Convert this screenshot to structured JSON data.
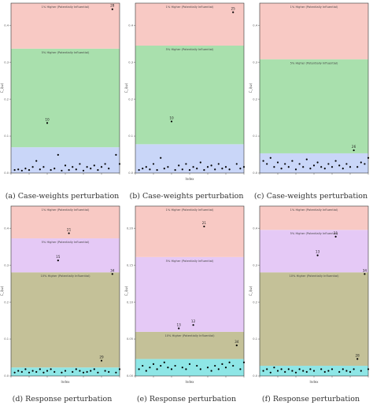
{
  "colors": {
    "red": "#f8c9c4",
    "green": "#a9e0ad",
    "blue": "#c9d6f8",
    "lavender": "#e5c9f6",
    "olive": "#c4c198",
    "cyan": "#8ee6e6",
    "point": "#000000",
    "frame": "#333333"
  },
  "chart_data": [
    {
      "type": "scatter",
      "caption": "(a) Case-weights perturbation",
      "ylabel": "C_i(ω)",
      "xlabel": "",
      "xlim": [
        0,
        30
      ],
      "ylim": [
        0,
        0.56
      ],
      "yticks": [
        "0.0",
        "0.1",
        "0.2",
        "0.3",
        "0.4"
      ],
      "bands": [
        {
          "from": 0.0,
          "to": 0.085,
          "color": "blue",
          "label": ""
        },
        {
          "from": 0.085,
          "to": 0.41,
          "color": "green",
          "label": "5% Higher (Potentially Influential)"
        },
        {
          "from": 0.41,
          "to": 0.56,
          "color": "red",
          "label": "1% Higher (Potentially Influential)"
        }
      ],
      "points": [
        [
          1,
          0.01
        ],
        [
          2,
          0.012
        ],
        [
          3,
          0.008
        ],
        [
          4,
          0.015
        ],
        [
          5,
          0.01
        ],
        [
          6,
          0.02
        ],
        [
          7,
          0.04
        ],
        [
          8,
          0.012
        ],
        [
          9,
          0.02
        ],
        [
          10,
          0.165
        ],
        [
          11,
          0.01
        ],
        [
          12,
          0.015
        ],
        [
          13,
          0.06
        ],
        [
          14,
          0.008
        ],
        [
          15,
          0.025
        ],
        [
          16,
          0.01
        ],
        [
          17,
          0.02
        ],
        [
          18,
          0.012
        ],
        [
          19,
          0.03
        ],
        [
          20,
          0.008
        ],
        [
          21,
          0.02
        ],
        [
          22,
          0.015
        ],
        [
          23,
          0.025
        ],
        [
          24,
          0.01
        ],
        [
          25,
          0.02
        ],
        [
          26,
          0.03
        ],
        [
          27,
          0.015
        ],
        [
          28,
          0.54
        ],
        [
          29,
          0.06
        ],
        [
          30,
          0.03
        ]
      ],
      "labels": [
        {
          "x": 28,
          "y": 0.54,
          "text": "28"
        },
        {
          "x": 10,
          "y": 0.165,
          "text": "10"
        }
      ]
    },
    {
      "type": "scatter",
      "caption": "(b) Case-weights perturbation",
      "ylabel": "C_i(ω)",
      "xlabel": "Index",
      "xlim": [
        0,
        30
      ],
      "ylim": [
        0,
        0.56
      ],
      "yticks": [
        "0.0",
        "0.1",
        "0.2",
        "0.3",
        "0.4"
      ],
      "bands": [
        {
          "from": 0.0,
          "to": 0.095,
          "color": "blue",
          "label": ""
        },
        {
          "from": 0.095,
          "to": 0.42,
          "color": "green",
          "label": "5% Higher (Potentially Influential)"
        },
        {
          "from": 0.42,
          "to": 0.56,
          "color": "red",
          "label": "1% Higher (Potentially Influential)"
        }
      ],
      "points": [
        [
          1,
          0.01
        ],
        [
          2,
          0.015
        ],
        [
          3,
          0.02
        ],
        [
          4,
          0.012
        ],
        [
          5,
          0.03
        ],
        [
          6,
          0.01
        ],
        [
          7,
          0.05
        ],
        [
          8,
          0.015
        ],
        [
          9,
          0.02
        ],
        [
          10,
          0.17
        ],
        [
          11,
          0.01
        ],
        [
          12,
          0.025
        ],
        [
          13,
          0.012
        ],
        [
          14,
          0.03
        ],
        [
          15,
          0.01
        ],
        [
          16,
          0.02
        ],
        [
          17,
          0.015
        ],
        [
          18,
          0.035
        ],
        [
          19,
          0.01
        ],
        [
          20,
          0.02
        ],
        [
          21,
          0.025
        ],
        [
          22,
          0.012
        ],
        [
          23,
          0.03
        ],
        [
          24,
          0.015
        ],
        [
          25,
          0.02
        ],
        [
          26,
          0.012
        ],
        [
          27,
          0.53
        ],
        [
          28,
          0.03
        ],
        [
          29,
          0.015
        ],
        [
          30,
          0.02
        ]
      ],
      "labels": [
        {
          "x": 27,
          "y": 0.53,
          "text": "25"
        },
        {
          "x": 10,
          "y": 0.17,
          "text": "10"
        }
      ]
    },
    {
      "type": "scatter",
      "caption": "(c) Case-weights perturbation",
      "ylabel": "C_i(ω)",
      "xlabel": "",
      "xlim": [
        0,
        30
      ],
      "ylim": [
        0,
        0.56
      ],
      "yticks": [
        "0.0",
        "0.1",
        "0.2",
        "0.3",
        "0.4"
      ],
      "bands": [
        {
          "from": 0.0,
          "to": 0.065,
          "color": "blue",
          "label": ""
        },
        {
          "from": 0.065,
          "to": 0.375,
          "color": "green",
          "label": "5% Higher (Potentially Influential)"
        },
        {
          "from": 0.375,
          "to": 0.56,
          "color": "red",
          "label": "1% Higher (Potentially Influential)"
        }
      ],
      "points": [
        [
          1,
          0.04
        ],
        [
          2,
          0.03
        ],
        [
          3,
          0.05
        ],
        [
          4,
          0.02
        ],
        [
          5,
          0.035
        ],
        [
          6,
          0.015
        ],
        [
          7,
          0.03
        ],
        [
          8,
          0.02
        ],
        [
          9,
          0.04
        ],
        [
          10,
          0.012
        ],
        [
          11,
          0.03
        ],
        [
          12,
          0.02
        ],
        [
          13,
          0.045
        ],
        [
          14,
          0.015
        ],
        [
          15,
          0.025
        ],
        [
          16,
          0.035
        ],
        [
          17,
          0.02
        ],
        [
          18,
          0.015
        ],
        [
          19,
          0.03
        ],
        [
          20,
          0.02
        ],
        [
          21,
          0.04
        ],
        [
          22,
          0.025
        ],
        [
          23,
          0.015
        ],
        [
          24,
          0.03
        ],
        [
          25,
          0.02
        ],
        [
          26,
          0.075
        ],
        [
          27,
          0.02
        ],
        [
          28,
          0.035
        ],
        [
          29,
          0.03
        ],
        [
          30,
          0.05
        ]
      ],
      "labels": [
        {
          "x": 26,
          "y": 0.075,
          "text": "26"
        }
      ]
    },
    {
      "type": "scatter",
      "caption": "(d) Response perturbation",
      "ylabel": "C_i(ω)",
      "xlabel": "Index",
      "xlim": [
        0,
        30
      ],
      "ylim": [
        0,
        0.5
      ],
      "yticks": [
        "0.0",
        "0.1",
        "0.2",
        "0.3",
        "0.4"
      ],
      "bands": [
        {
          "from": 0.0,
          "to": 0.025,
          "color": "cyan",
          "label": ""
        },
        {
          "from": 0.025,
          "to": 0.305,
          "color": "olive",
          "label": "10% Higher (Potentially Influential)"
        },
        {
          "from": 0.305,
          "to": 0.405,
          "color": "lavender",
          "label": "5% Higher (Potentially Influential)"
        },
        {
          "from": 0.405,
          "to": 0.5,
          "color": "red",
          "label": "1% Higher (Potentially Influential)"
        }
      ],
      "points": [
        [
          1,
          0.01
        ],
        [
          2,
          0.015
        ],
        [
          3,
          0.012
        ],
        [
          4,
          0.02
        ],
        [
          5,
          0.01
        ],
        [
          6,
          0.015
        ],
        [
          7,
          0.012
        ],
        [
          8,
          0.02
        ],
        [
          9,
          0.01
        ],
        [
          10,
          0.015
        ],
        [
          11,
          0.02
        ],
        [
          12,
          0.012
        ],
        [
          13,
          0.34
        ],
        [
          14,
          0.01
        ],
        [
          15,
          0.015
        ],
        [
          16,
          0.42
        ],
        [
          17,
          0.012
        ],
        [
          18,
          0.02
        ],
        [
          19,
          0.015
        ],
        [
          20,
          0.01
        ],
        [
          21,
          0.012
        ],
        [
          22,
          0.015
        ],
        [
          23,
          0.02
        ],
        [
          24,
          0.01
        ],
        [
          25,
          0.045
        ],
        [
          26,
          0.015
        ],
        [
          27,
          0.012
        ],
        [
          28,
          0.3
        ],
        [
          29,
          0.01
        ],
        [
          30,
          0.02
        ]
      ],
      "labels": [
        {
          "x": 16,
          "y": 0.42,
          "text": "21"
        },
        {
          "x": 13,
          "y": 0.34,
          "text": "15"
        },
        {
          "x": 28,
          "y": 0.3,
          "text": "34"
        },
        {
          "x": 25,
          "y": 0.045,
          "text": "29"
        }
      ]
    },
    {
      "type": "scatter",
      "caption": "(e) Response perturbation",
      "ylabel": "C_i(ω)",
      "xlabel": "Index",
      "xlim": [
        0,
        30
      ],
      "ylim": [
        0,
        0.5
      ],
      "yticks": [
        "0.00",
        "0.05",
        "0.10",
        "0.15",
        "0.20"
      ],
      "bands": [
        {
          "from": 0.0,
          "to": 0.05,
          "color": "cyan",
          "label": ""
        },
        {
          "from": 0.05,
          "to": 0.13,
          "color": "olive",
          "label": "10% Higher (Potentially Influential)"
        },
        {
          "from": 0.13,
          "to": 0.35,
          "color": "lavender",
          "label": "5% Higher (Potentially Influential)"
        },
        {
          "from": 0.35,
          "to": 0.5,
          "color": "red",
          "label": "1% Higher (Potentially Influential)"
        }
      ],
      "points": [
        [
          1,
          0.02
        ],
        [
          2,
          0.03
        ],
        [
          3,
          0.015
        ],
        [
          4,
          0.025
        ],
        [
          5,
          0.035
        ],
        [
          6,
          0.02
        ],
        [
          7,
          0.03
        ],
        [
          8,
          0.04
        ],
        [
          9,
          0.025
        ],
        [
          10,
          0.02
        ],
        [
          11,
          0.03
        ],
        [
          12,
          0.14
        ],
        [
          13,
          0.025
        ],
        [
          14,
          0.02
        ],
        [
          15,
          0.035
        ],
        [
          16,
          0.15
        ],
        [
          17,
          0.03
        ],
        [
          18,
          0.02
        ],
        [
          19,
          0.44
        ],
        [
          20,
          0.025
        ],
        [
          21,
          0.015
        ],
        [
          22,
          0.03
        ],
        [
          23,
          0.02
        ],
        [
          24,
          0.035
        ],
        [
          25,
          0.025
        ],
        [
          26,
          0.04
        ],
        [
          27,
          0.03
        ],
        [
          28,
          0.09
        ],
        [
          29,
          0.02
        ],
        [
          30,
          0.04
        ]
      ],
      "labels": [
        {
          "x": 19,
          "y": 0.44,
          "text": "21"
        },
        {
          "x": 16,
          "y": 0.15,
          "text": "12"
        },
        {
          "x": 12,
          "y": 0.14,
          "text": "13"
        },
        {
          "x": 28,
          "y": 0.09,
          "text": "34"
        }
      ]
    },
    {
      "type": "scatter",
      "caption": "(f) Response perturbation",
      "ylabel": "C_i(ω)",
      "xlabel": "Index",
      "xlim": [
        0,
        30
      ],
      "ylim": [
        0,
        0.5
      ],
      "yticks": [
        "0.0",
        "0.1",
        "0.2",
        "0.3",
        "0.4"
      ],
      "bands": [
        {
          "from": 0.0,
          "to": 0.03,
          "color": "cyan",
          "label": ""
        },
        {
          "from": 0.03,
          "to": 0.305,
          "color": "olive",
          "label": "10% Higher (Potentially Influential)"
        },
        {
          "from": 0.305,
          "to": 0.43,
          "color": "lavender",
          "label": "5% Higher (Potentially Influential)"
        },
        {
          "from": 0.43,
          "to": 0.5,
          "color": "red",
          "label": "1% Higher (Potentially Influential)"
        }
      ],
      "points": [
        [
          1,
          0.015
        ],
        [
          2,
          0.02
        ],
        [
          3,
          0.01
        ],
        [
          4,
          0.025
        ],
        [
          5,
          0.015
        ],
        [
          6,
          0.02
        ],
        [
          7,
          0.012
        ],
        [
          8,
          0.02
        ],
        [
          9,
          0.015
        ],
        [
          10,
          0.01
        ],
        [
          11,
          0.02
        ],
        [
          12,
          0.015
        ],
        [
          13,
          0.012
        ],
        [
          14,
          0.02
        ],
        [
          15,
          0.015
        ],
        [
          16,
          0.355
        ],
        [
          17,
          0.02
        ],
        [
          18,
          0.012
        ],
        [
          19,
          0.015
        ],
        [
          20,
          0.02
        ],
        [
          21,
          0.41
        ],
        [
          22,
          0.012
        ],
        [
          23,
          0.02
        ],
        [
          24,
          0.015
        ],
        [
          25,
          0.012
        ],
        [
          26,
          0.02
        ],
        [
          27,
          0.05
        ],
        [
          28,
          0.015
        ],
        [
          29,
          0.3
        ],
        [
          30,
          0.02
        ]
      ],
      "labels": [
        {
          "x": 21,
          "y": 0.41,
          "text": "21"
        },
        {
          "x": 16,
          "y": 0.355,
          "text": "13"
        },
        {
          "x": 29,
          "y": 0.3,
          "text": "34"
        },
        {
          "x": 27,
          "y": 0.05,
          "text": "28"
        }
      ]
    }
  ]
}
